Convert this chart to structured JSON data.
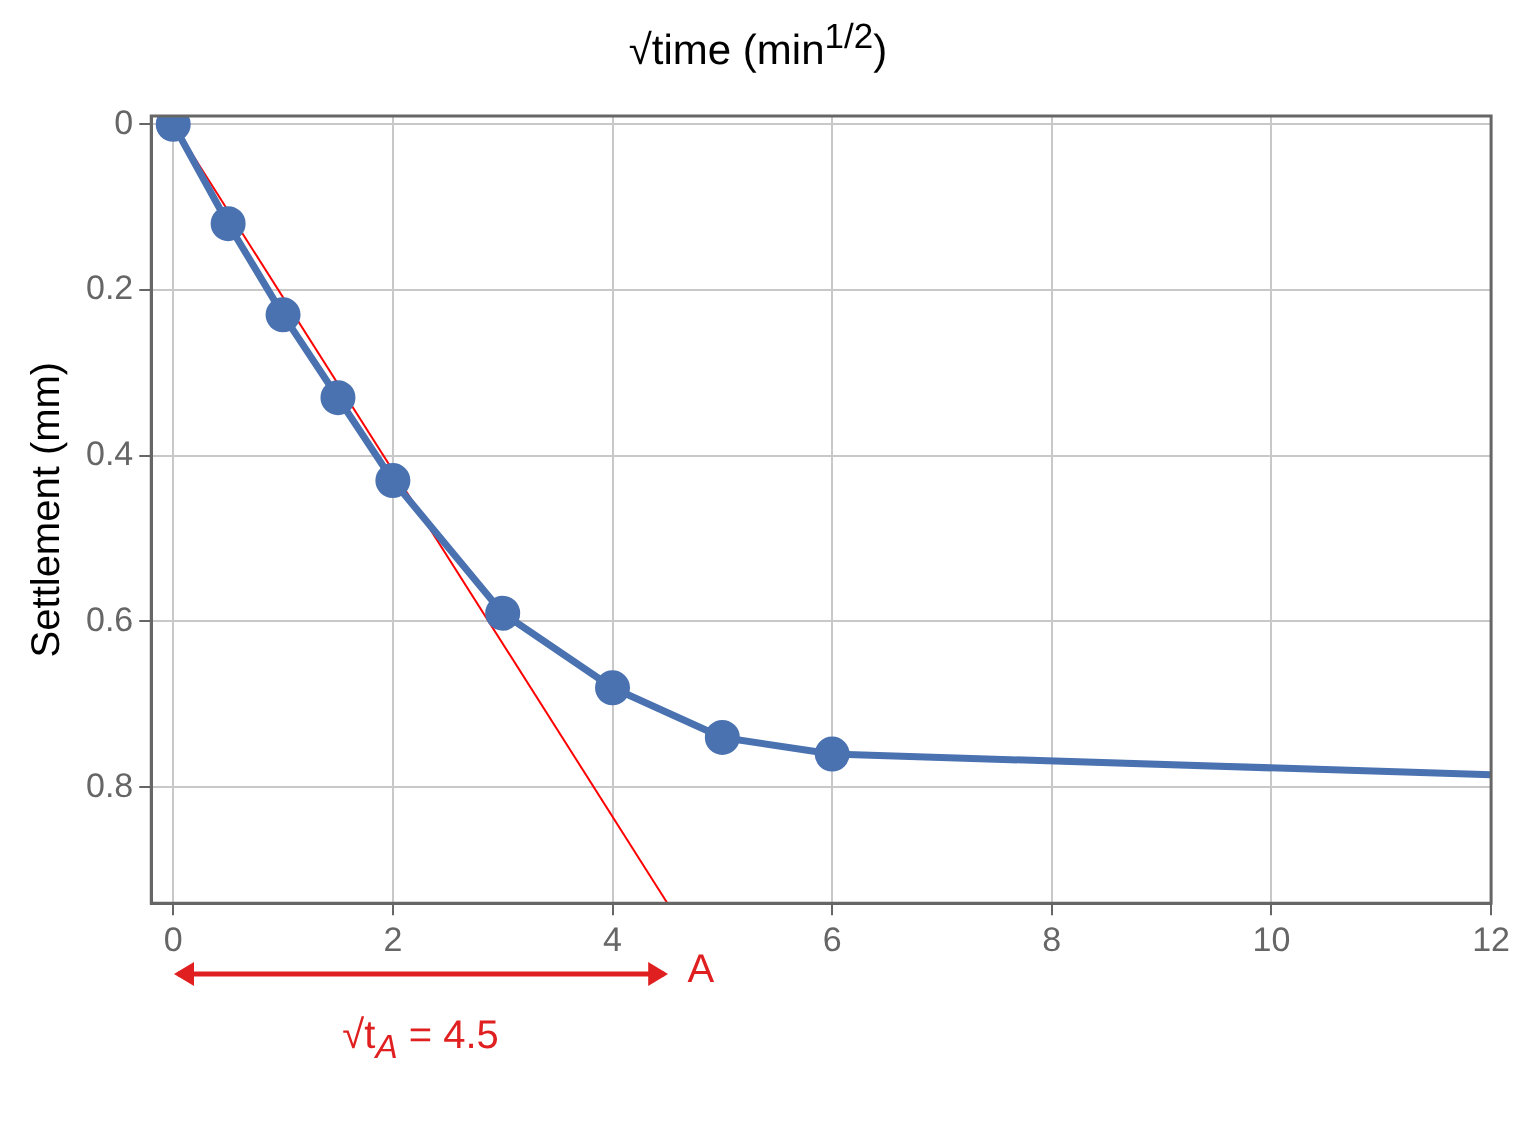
{
  "chart_data": {
    "type": "line",
    "title": "√time (min$^{1/2}$)",
    "ylabel": "Settlement (mm)",
    "xlim": [
      -0.2,
      12
    ],
    "xticks": [
      0,
      2,
      4,
      6,
      8,
      10,
      12
    ],
    "ylim": [
      0.94,
      -0.01
    ],
    "yticks": [
      0,
      0.2,
      0.4,
      0.6,
      0.8
    ],
    "grid": true,
    "marker": "circle",
    "line_style": "solid",
    "series": [
      {
        "color": "#4a72b0",
        "x": [
          0,
          0.5,
          1,
          1.5,
          2,
          3,
          4,
          5,
          6
        ],
        "values": [
          0,
          0.12,
          0.23,
          0.33,
          0.43,
          0.59,
          0.68,
          0.74,
          0.76
        ]
      },
      {
        "color": "#4a72b0",
        "marker": "none",
        "x": [
          6,
          12
        ],
        "values": [
          0.76,
          0.785
        ]
      },
      {
        "color": "#ff0000",
        "marker": "none",
        "x": [
          0,
          4.5
        ],
        "values": [
          0,
          0.94
        ]
      }
    ],
    "annotations": [
      "A",
      "√t$_{A}$ = 4.5"
    ]
  }
}
